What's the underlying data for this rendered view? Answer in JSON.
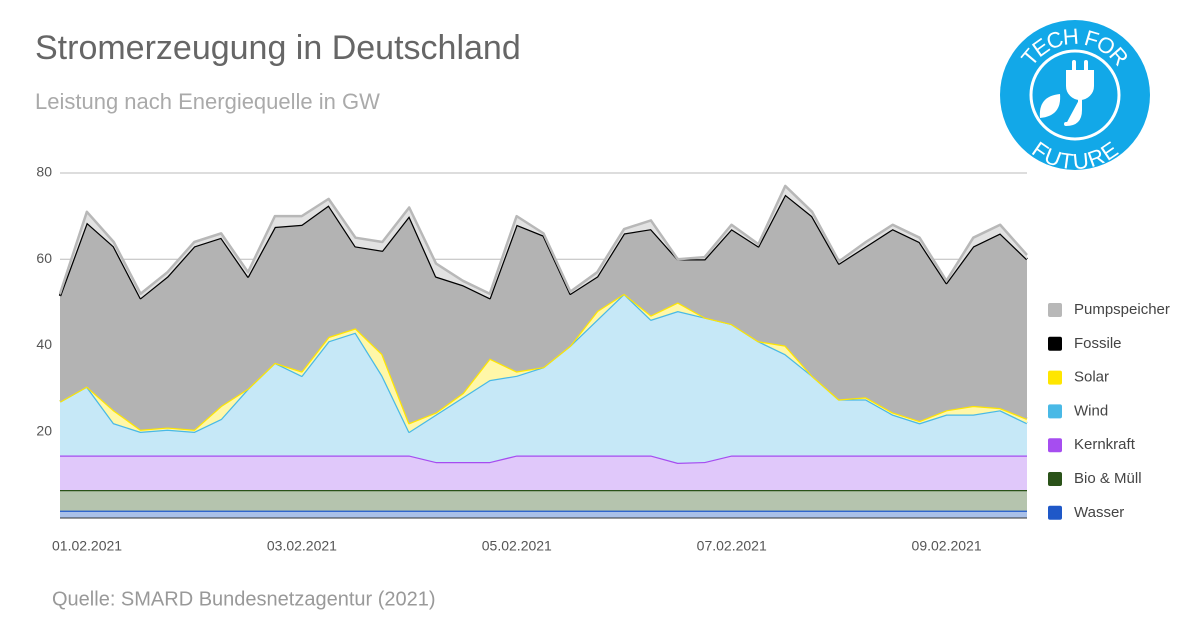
{
  "chart_data": {
    "type": "stacked-area",
    "title": "Stromerzeugung in Deutschland",
    "subtitle": "Leistung nach Energiequelle in GW",
    "source": "Quelle: SMARD Bundesnetzagentur (2021)",
    "logo": {
      "top": "TECH FOR",
      "bottom": "FUTURE"
    },
    "categories": [
      "01.02.2021",
      null,
      null,
      null,
      null,
      null,
      null,
      null,
      "03.02.2021",
      null,
      null,
      null,
      null,
      null,
      null,
      null,
      "05.02.2021",
      null,
      null,
      null,
      null,
      null,
      null,
      null,
      "07.02.2021",
      null,
      null,
      null,
      null,
      null,
      null,
      null,
      "09.02.2021",
      null,
      null,
      null,
      null
    ],
    "ylim": [
      0,
      80
    ],
    "yticks": [
      20,
      40,
      60,
      80
    ],
    "grid": true,
    "legend": "right",
    "series": [
      {
        "name": "Wasser",
        "color": "#1f58c8",
        "fill": "#a9c0e8",
        "values": [
          1.7,
          1.7,
          1.7,
          1.7,
          1.7,
          1.7,
          1.7,
          1.7,
          1.7,
          1.7,
          1.7,
          1.7,
          1.7,
          1.7,
          1.7,
          1.7,
          1.7,
          1.7,
          1.7,
          1.7,
          1.7,
          1.7,
          1.7,
          1.7,
          1.7,
          1.7,
          1.7,
          1.7,
          1.7,
          1.7,
          1.7,
          1.7,
          1.7,
          1.7,
          1.7,
          1.7,
          1.7
        ]
      },
      {
        "name": "Bio & Müll",
        "color": "#2a5219",
        "fill": "#b5c4ae",
        "values": [
          4.8,
          4.8,
          4.8,
          4.8,
          4.8,
          4.8,
          4.8,
          4.8,
          4.8,
          4.8,
          4.8,
          4.8,
          4.8,
          4.8,
          4.8,
          4.8,
          4.8,
          4.8,
          4.8,
          4.8,
          4.8,
          4.8,
          4.8,
          4.8,
          4.8,
          4.8,
          4.8,
          4.8,
          4.8,
          4.8,
          4.8,
          4.8,
          4.8,
          4.8,
          4.8,
          4.8,
          4.8
        ]
      },
      {
        "name": "Kernkraft",
        "color": "#a64df0",
        "fill": "#e0c8fa",
        "values": [
          8,
          8,
          8,
          8,
          8,
          8,
          8,
          8,
          8,
          8,
          8,
          8,
          8,
          8,
          6.5,
          6.5,
          6.5,
          8,
          8,
          8,
          8,
          8,
          8,
          6.3,
          6.5,
          8,
          8,
          8,
          8,
          8,
          8,
          8,
          8,
          8,
          8,
          8,
          8
        ]
      },
      {
        "name": "Wind",
        "color": "#49b9e6",
        "fill": "#c6e8f7",
        "values": [
          12.5,
          16,
          7.5,
          5.5,
          6,
          5.5,
          8.5,
          15.5,
          21.5,
          18.5,
          26.5,
          28.5,
          18.5,
          5.5,
          11,
          15,
          19,
          18.5,
          20.5,
          25.5,
          31.5,
          37.5,
          31.5,
          35.2,
          33.5,
          30.5,
          26.5,
          23.5,
          18.5,
          13,
          13,
          9.5,
          7.5,
          9.5,
          9.5,
          10.5,
          7.5
        ]
      },
      {
        "name": "Solar",
        "color": "#ffe600",
        "fill": "#fff7a8",
        "values": [
          0,
          0,
          3,
          0.5,
          0.5,
          0.5,
          3,
          0,
          0,
          1,
          1,
          1,
          5,
          2,
          0.5,
          1,
          5,
          1,
          0,
          0,
          2,
          0,
          1,
          2,
          0,
          0,
          0,
          2,
          0,
          0,
          0.5,
          0.5,
          0.5,
          1,
          2,
          0.5,
          1
        ]
      },
      {
        "name": "Fossile",
        "color": "#000000",
        "fill": "#b3b3b3",
        "values": [
          24.5,
          38,
          38,
          30.5,
          35,
          42.5,
          39,
          26,
          31.5,
          34,
          30.5,
          19,
          24,
          48,
          31.5,
          25,
          14,
          34,
          30.5,
          12,
          8,
          14,
          20,
          10,
          13.5,
          22,
          22,
          35,
          37,
          31.5,
          35,
          42.5,
          41.5,
          29.5,
          37,
          40.5,
          37
        ]
      },
      {
        "name": "Pumpspeicher",
        "color": "#b8b8b8",
        "fill": "#e2e2e2",
        "values": [
          0.5,
          2.5,
          1,
          1,
          1,
          1,
          1,
          1,
          2.5,
          2,
          1.5,
          2,
          2,
          2,
          3,
          1,
          1,
          2,
          0.5,
          0.5,
          1,
          1,
          2,
          0,
          0.5,
          1,
          0.5,
          2,
          1,
          0.5,
          1,
          1,
          1,
          0.5,
          2,
          2,
          1
        ]
      }
    ]
  }
}
